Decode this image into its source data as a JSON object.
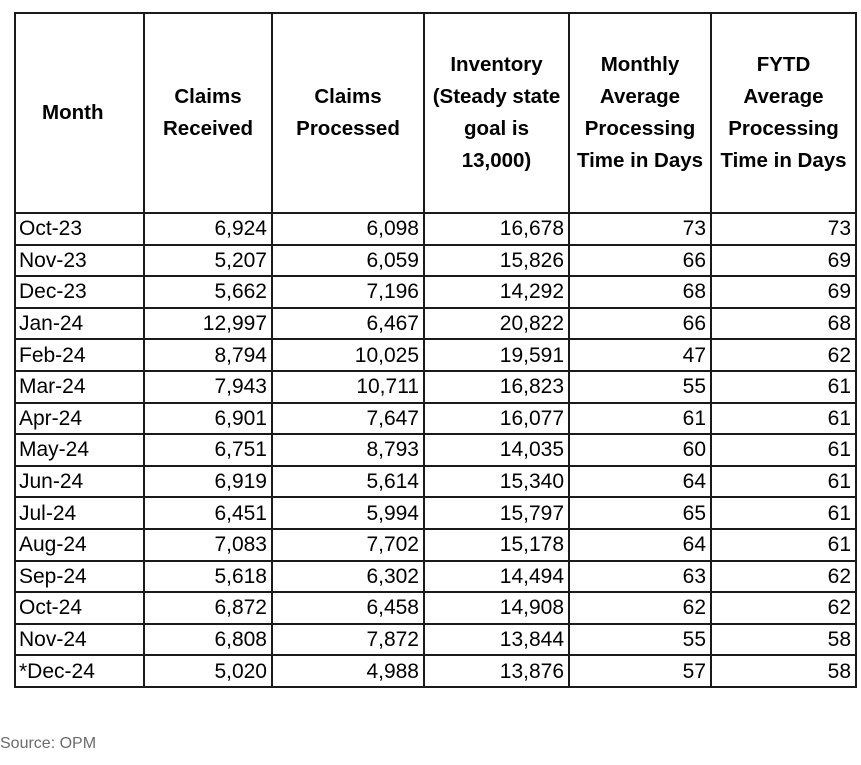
{
  "table": {
    "headers": [
      "Month",
      "Claims Received",
      "Claims Processed",
      "Inventory (Steady state goal is 13,000)",
      "Monthly Average Processing Time in Days",
      "FYTD Average Processing Time in Days"
    ],
    "rows": [
      [
        "Oct-23",
        "6,924",
        "6,098",
        "16,678",
        "73",
        "73"
      ],
      [
        "Nov-23",
        "5,207",
        "6,059",
        "15,826",
        "66",
        "69"
      ],
      [
        "Dec-23",
        "5,662",
        "7,196",
        "14,292",
        "68",
        "69"
      ],
      [
        "Jan-24",
        "12,997",
        "6,467",
        "20,822",
        "66",
        "68"
      ],
      [
        "Feb-24",
        "8,794",
        "10,025",
        "19,591",
        "47",
        "62"
      ],
      [
        "Mar-24",
        "7,943",
        "10,711",
        "16,823",
        "55",
        "61"
      ],
      [
        "Apr-24",
        "6,901",
        "7,647",
        "16,077",
        "61",
        "61"
      ],
      [
        "May-24",
        "6,751",
        "8,793",
        "14,035",
        "60",
        "61"
      ],
      [
        "Jun-24",
        "6,919",
        "5,614",
        "15,340",
        "64",
        "61"
      ],
      [
        "Jul-24",
        "6,451",
        "5,994",
        "15,797",
        "65",
        "61"
      ],
      [
        "Aug-24",
        "7,083",
        "7,702",
        "15,178",
        "64",
        "61"
      ],
      [
        "Sep-24",
        "5,618",
        "6,302",
        "14,494",
        "63",
        "62"
      ],
      [
        "Oct-24",
        "6,872",
        "6,458",
        "14,908",
        "62",
        "62"
      ],
      [
        "Nov-24",
        "6,808",
        "7,872",
        "13,844",
        "55",
        "58"
      ],
      [
        "*Dec-24",
        "5,020",
        "4,988",
        "13,876",
        "57",
        "58"
      ]
    ]
  },
  "source": "Source: OPM"
}
